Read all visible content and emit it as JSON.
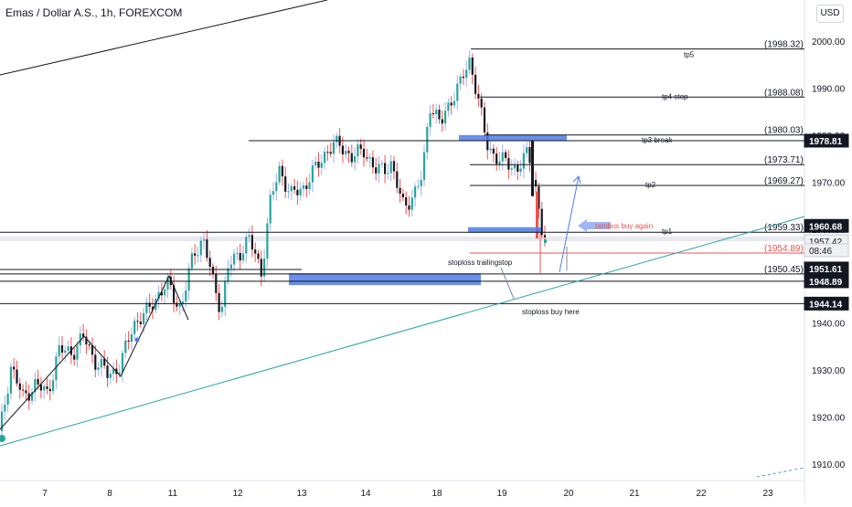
{
  "header": {
    "title": "Emas / Dollar A.S., 1h, FOREXCOM",
    "currency": "USD"
  },
  "chart_data": {
    "type": "candlestick",
    "y_ticks": [
      "1910.00",
      "1920.00",
      "1930.00",
      "1940.00",
      "1950.00",
      "1960.00",
      "1970.00",
      "1980.00",
      "1990.00",
      "2000.00"
    ],
    "x_ticks": [
      "7",
      "8",
      "11",
      "12",
      "13",
      "14",
      "18",
      "19",
      "20",
      "21",
      "22",
      "23"
    ],
    "ylim": [
      1906,
      2009
    ],
    "price_badges": [
      {
        "label": "1978.81",
        "price": 1978.81,
        "style": "dark"
      },
      {
        "label": "1960.68",
        "price": 1960.68,
        "style": "dark"
      },
      {
        "label": "1957.42",
        "price": 1957.42,
        "style": "light"
      },
      {
        "label": "08:46",
        "price": 1955.5,
        "style": "light"
      },
      {
        "label": "1951.61",
        "price": 1951.61,
        "style": "dark"
      },
      {
        "label": "1948.89",
        "price": 1948.89,
        "style": "dark"
      },
      {
        "label": "1944.14",
        "price": 1944.14,
        "style": "dark"
      }
    ],
    "levels": [
      {
        "price": 1998.32,
        "label": "(1998.32)",
        "note": "tp5"
      },
      {
        "price": 1988.08,
        "label": "(1988.08)",
        "note": "tp4 stop"
      },
      {
        "price": 1980.03,
        "label": "(1980.03)",
        "note": ""
      },
      {
        "price": 1978.81,
        "label": "",
        "note": "tp3 break"
      },
      {
        "price": 1973.71,
        "label": "(1973.71)",
        "note": ""
      },
      {
        "price": 1969.27,
        "label": "(1969.27)",
        "note": "tp2"
      },
      {
        "price": 1959.33,
        "label": "(1959.33)",
        "note": "tp1"
      },
      {
        "price": 1954.89,
        "label": "(1954.89)",
        "note": ""
      },
      {
        "price": 1950.45,
        "label": "(1950.45)",
        "note": ""
      }
    ],
    "annotations": {
      "buy_again": "tambus  buy again",
      "stoploss_trailing": "stoploss trailingstop",
      "stoploss_buy": "stoploss buy here"
    },
    "last_price": 1957.42,
    "colors": {
      "up": "#26a69a",
      "down": "#131722",
      "wick_up": "#9fb1e8",
      "wick_down": "#ef5350",
      "zone": "#4f7be8",
      "trend": "#26a2a8",
      "red_line": "#ef5350"
    }
  }
}
